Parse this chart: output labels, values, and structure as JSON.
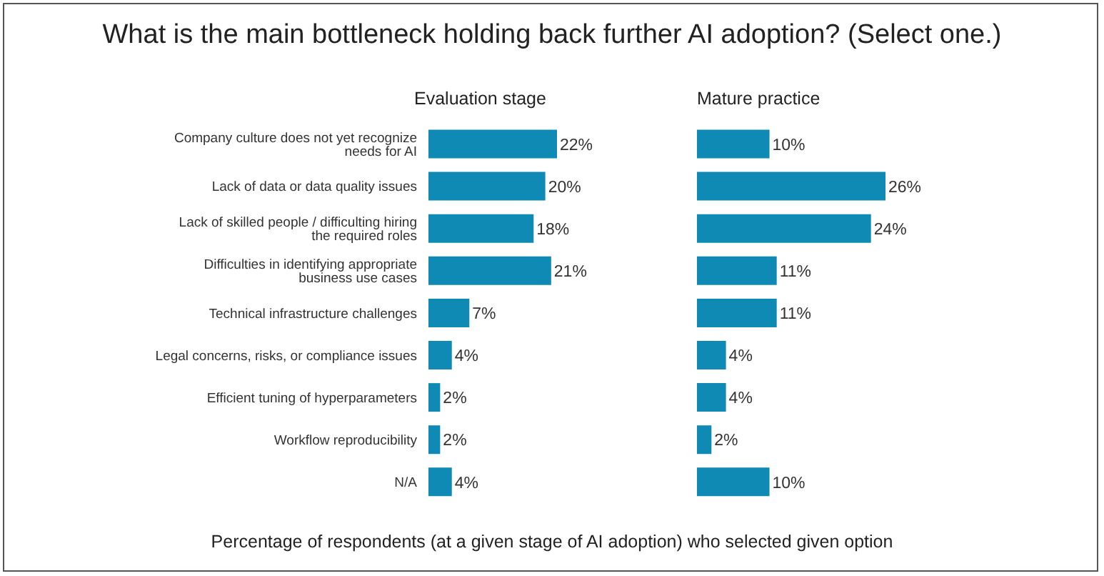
{
  "chart_data": [
    {
      "type": "bar",
      "orientation": "horizontal",
      "title": "What is the main bottleneck holding back further AI adoption?  (Select one.)",
      "subtitle": "Evaluation stage",
      "categories": [
        "Company culture does not yet recognize needs for AI",
        "Lack of data or data quality issues",
        "Lack of skilled people / difficulting hiring the required roles",
        "Difficulties in identifying appropriate business use cases",
        "Technical infrastructure challenges",
        "Legal concerns, risks, or compliance issues",
        "Efficient tuning of hyperparameters",
        "Workflow reproducibility",
        "N/A"
      ],
      "values": [
        22,
        20,
        18,
        21,
        7,
        4,
        2,
        2,
        4
      ],
      "value_labels": [
        "22%",
        "20%",
        "18%",
        "21%",
        "7%",
        "4%",
        "2%",
        "2%",
        "4%"
      ],
      "color": "#0f8ab4",
      "annotations": [
        "Percentage of respondents (at a given stage of AI adoption) who selected given option"
      ]
    },
    {
      "type": "bar",
      "orientation": "horizontal",
      "subtitle": "Mature practice",
      "categories": [
        null,
        null,
        null,
        null,
        null,
        null,
        null,
        null,
        null
      ],
      "values": [
        10,
        26,
        24,
        11,
        11,
        4,
        4,
        2,
        10
      ],
      "value_labels": [
        "10%",
        "26%",
        "24%",
        "11%",
        "11%",
        "4%",
        "4%",
        "2%",
        "10%"
      ],
      "color": "#0f8ab4"
    }
  ]
}
